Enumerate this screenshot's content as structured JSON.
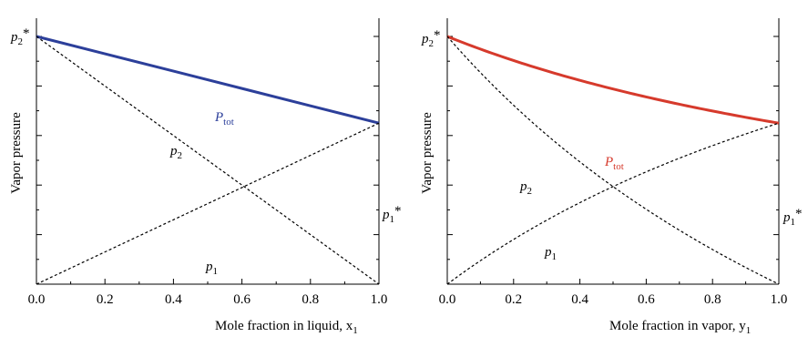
{
  "chart_data": [
    {
      "type": "line",
      "xlabel": "Mole fraction in liquid, x",
      "xlabel_sub": "1",
      "ylabel": "Vapor pressure",
      "xlim": [
        0,
        1
      ],
      "x_ticks": [
        "0.0",
        "0.2",
        "0.4",
        "0.6",
        "0.8",
        "1.0"
      ],
      "ylim": [
        0,
        1
      ],
      "y_tick_labels_shown": false,
      "grid": false,
      "series": [
        {
          "name": "P",
          "name_sub": "tot",
          "style": "solid",
          "color": "#2c3f9a",
          "x": [
            0,
            0.2,
            0.4,
            0.6,
            0.8,
            1.0
          ],
          "y": [
            1.0,
            0.93,
            0.86,
            0.79,
            0.72,
            0.65
          ]
        },
        {
          "name": "p",
          "name_sub": "2",
          "style": "dashed",
          "color": "#000000",
          "x": [
            0,
            0.2,
            0.4,
            0.6,
            0.8,
            1.0
          ],
          "y": [
            1.0,
            0.8,
            0.6,
            0.4,
            0.2,
            0.0
          ]
        },
        {
          "name": "p",
          "name_sub": "1",
          "style": "dashed",
          "color": "#000000",
          "x": [
            0,
            0.2,
            0.4,
            0.6,
            0.8,
            1.0
          ],
          "y": [
            0.0,
            0.13,
            0.26,
            0.39,
            0.52,
            0.65
          ]
        }
      ],
      "endpoint_labels": [
        {
          "text": "p",
          "sub": "2",
          "sup": "*",
          "side": "left",
          "value": 1.0
        },
        {
          "text": "p",
          "sub": "1",
          "sup": "*",
          "side": "right",
          "value": 0.65
        }
      ]
    },
    {
      "type": "line",
      "xlabel": "Mole fraction in vapor, y",
      "xlabel_sub": "1",
      "ylabel": "Vapor pressure",
      "xlim": [
        0,
        1
      ],
      "x_ticks": [
        "0.0",
        "0.2",
        "0.4",
        "0.6",
        "0.8",
        "1.0"
      ],
      "ylim": [
        0,
        1
      ],
      "y_tick_labels_shown": false,
      "grid": false,
      "p1_star": 0.65,
      "p2_star": 1.0,
      "series": [
        {
          "name": "P",
          "name_sub": "tot",
          "style": "solid",
          "color": "#d63a2c"
        },
        {
          "name": "p",
          "name_sub": "2",
          "style": "dashed",
          "color": "#000000"
        },
        {
          "name": "p",
          "name_sub": "1",
          "style": "dashed",
          "color": "#000000"
        }
      ],
      "endpoint_labels": [
        {
          "text": "p",
          "sub": "2",
          "sup": "*",
          "side": "left",
          "value": 1.0
        },
        {
          "text": "p",
          "sub": "1",
          "sup": "*",
          "side": "right",
          "value": 0.65
        }
      ]
    }
  ]
}
